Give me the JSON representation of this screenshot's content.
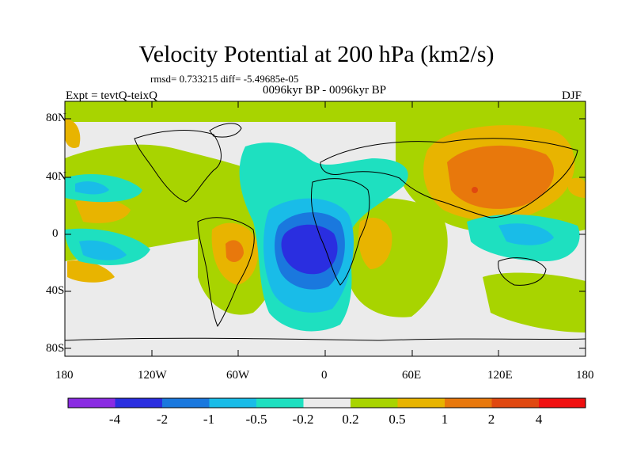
{
  "title": "Velocity Potential at 200 hPa (km2/s)",
  "stats": "rmsd= 0.733215 diff= -5.49685e-05",
  "period": "0096kyr BP - 0096kyr BP",
  "experiment": "Expt = tevtQ-teixQ",
  "season": "DJF",
  "lat_ticks": [
    "80N",
    "40N",
    "0",
    "40S",
    "80S"
  ],
  "lon_ticks": [
    "180",
    "120W",
    "60W",
    "0",
    "60E",
    "120E",
    "180"
  ],
  "colorbar": {
    "labels": [
      "-4",
      "-2",
      "-1",
      "-0.5",
      "-0.2",
      "0.2",
      "0.5",
      "1",
      "2",
      "4"
    ],
    "colors": [
      "#8a2be2",
      "#2a2ee0",
      "#1a78de",
      "#19bce8",
      "#1ee0c0",
      "#ebebeb",
      "#a8d400",
      "#e8b400",
      "#e8780c",
      "#e04810",
      "#f01010"
    ]
  }
}
